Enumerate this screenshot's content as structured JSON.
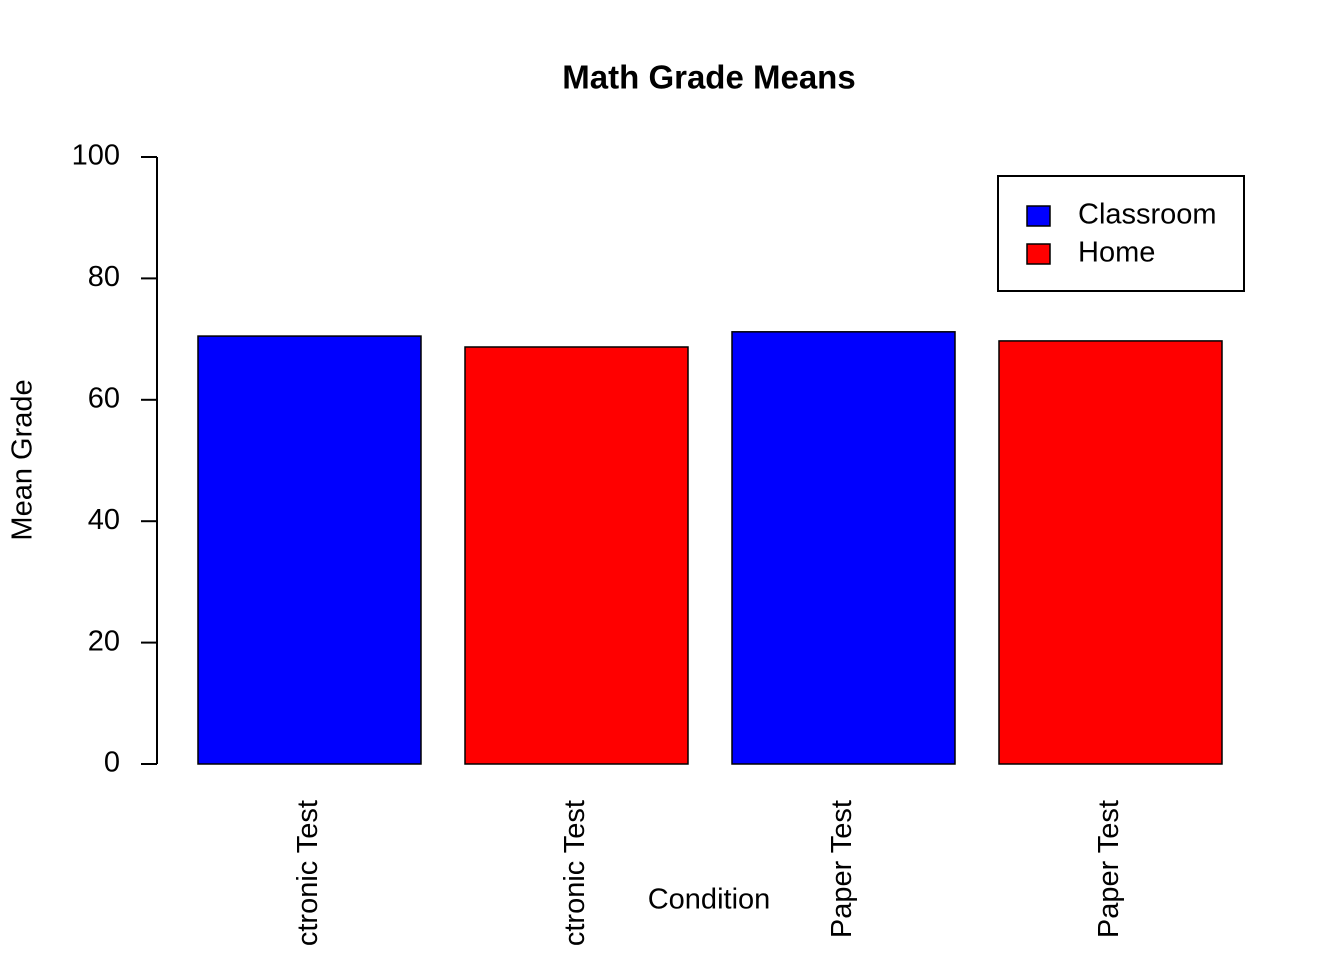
{
  "chart_data": {
    "type": "bar",
    "title": "Math Grade Means",
    "x_label": "Condition",
    "y_label": "Mean Grade",
    "categories": [
      "ctronic Test",
      "ctronic Test",
      "Paper Test",
      "Paper Test"
    ],
    "values": [
      70.5,
      68.7,
      71.2,
      69.7
    ],
    "colors": [
      "#0000ff",
      "#ff0000",
      "#0000ff",
      "#ff0000"
    ],
    "legend": [
      {
        "name": "Classroom",
        "color": "#0000ff"
      },
      {
        "name": "Home",
        "color": "#ff0000"
      }
    ],
    "legend_position": "top-right",
    "ylim": [
      0,
      100
    ],
    "yticks": [
      0,
      20,
      40,
      60,
      80,
      100
    ],
    "grid": false
  }
}
